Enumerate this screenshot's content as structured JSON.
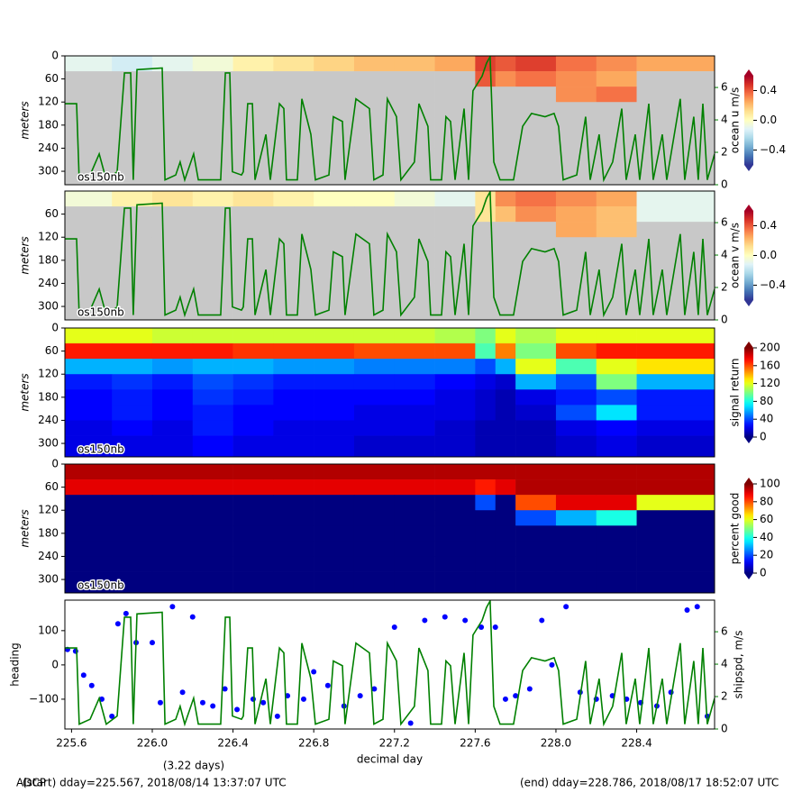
{
  "chart_data": [
    {
      "type": "heatmap",
      "ylabel": "meters",
      "label": "os150nb",
      "ylim": [
        335,
        0
      ],
      "yticks": [
        0,
        60,
        120,
        180,
        240,
        300
      ],
      "x_edges": [
        225.567,
        225.8,
        226.0,
        226.2,
        226.4,
        226.6,
        226.8,
        227.0,
        227.2,
        227.4,
        227.6,
        227.7,
        227.8,
        228.0,
        228.2,
        228.4,
        228.786
      ],
      "depth_edges": [
        0,
        40,
        80,
        120,
        160,
        200,
        240,
        280,
        335
      ],
      "z": [
        [
          -0.1,
          -0.15,
          -0.1,
          -0.05,
          0.05,
          0.1,
          0.15,
          0.2,
          0.2,
          0.25,
          0.45,
          0.4,
          0.45,
          0.35,
          0.3,
          0.25
        ],
        [
          null,
          null,
          null,
          null,
          null,
          null,
          null,
          null,
          null,
          null,
          0.4,
          0.3,
          0.35,
          0.3,
          0.25,
          null
        ],
        [
          null,
          null,
          null,
          null,
          null,
          null,
          null,
          null,
          null,
          null,
          null,
          null,
          null,
          0.3,
          0.35,
          null
        ],
        [
          null,
          null,
          null,
          null,
          null,
          null,
          null,
          null,
          null,
          null,
          null,
          null,
          null,
          null,
          null,
          null
        ],
        [
          null,
          null,
          null,
          null,
          null,
          null,
          null,
          null,
          null,
          null,
          null,
          null,
          null,
          null,
          null,
          null
        ],
        [
          null,
          null,
          null,
          null,
          null,
          null,
          null,
          null,
          null,
          null,
          null,
          null,
          null,
          null,
          null,
          null
        ],
        [
          null,
          null,
          null,
          null,
          null,
          null,
          null,
          null,
          null,
          null,
          null,
          null,
          null,
          null,
          null,
          null
        ],
        [
          null,
          null,
          null,
          null,
          null,
          null,
          null,
          null,
          null,
          null,
          null,
          null,
          null,
          null,
          null,
          null
        ]
      ],
      "colormap": "RdYlBu_r",
      "missing_color": "#c8c8c8",
      "clim": [
        -0.6,
        0.6
      ],
      "cticks": [
        {
          "value": -0.4,
          "label": "−0.4"
        },
        {
          "value": 0,
          "label": "0.0"
        },
        0.4
      ],
      "clabel": "ocean u m/s",
      "y2lim": [
        0,
        7.95
      ],
      "y2ticks": [
        0,
        2,
        4,
        6
      ],
      "y2_color": "green"
    },
    {
      "type": "heatmap",
      "ylabel": "meters",
      "label": "os150nb",
      "ylim": [
        335,
        0
      ],
      "yticks": [
        60,
        120,
        180,
        240,
        300
      ],
      "x_edges": [
        225.567,
        225.8,
        226.0,
        226.2,
        226.4,
        226.6,
        226.8,
        227.0,
        227.2,
        227.4,
        227.6,
        227.7,
        227.8,
        228.0,
        228.2,
        228.4,
        228.786
      ],
      "depth_edges": [
        0,
        40,
        80,
        120,
        160,
        200,
        240,
        280,
        335
      ],
      "z": [
        [
          -0.05,
          0.05,
          0.1,
          0.05,
          0.1,
          0.05,
          0,
          0,
          -0.05,
          -0.1,
          0.1,
          0.3,
          0.35,
          0.3,
          0.25,
          -0.1
        ],
        [
          null,
          null,
          null,
          null,
          null,
          null,
          null,
          null,
          null,
          null,
          0.1,
          0.2,
          0.3,
          0.25,
          0.2,
          -0.1
        ],
        [
          null,
          null,
          null,
          null,
          null,
          null,
          null,
          null,
          null,
          null,
          null,
          null,
          null,
          0.25,
          0.2,
          null
        ],
        [
          null,
          null,
          null,
          null,
          null,
          null,
          null,
          null,
          null,
          null,
          null,
          null,
          null,
          null,
          null,
          null
        ],
        [
          null,
          null,
          null,
          null,
          null,
          null,
          null,
          null,
          null,
          null,
          null,
          null,
          null,
          null,
          null,
          null
        ],
        [
          null,
          null,
          null,
          null,
          null,
          null,
          null,
          null,
          null,
          null,
          null,
          null,
          null,
          null,
          null,
          null
        ],
        [
          null,
          null,
          null,
          null,
          null,
          null,
          null,
          null,
          null,
          null,
          null,
          null,
          null,
          null,
          null,
          null
        ],
        [
          null,
          null,
          null,
          null,
          null,
          null,
          null,
          null,
          null,
          null,
          null,
          null,
          null,
          null,
          null,
          null
        ]
      ],
      "colormap": "RdYlBu_r",
      "missing_color": "#c8c8c8",
      "clim": [
        -0.6,
        0.6
      ],
      "cticks": [
        {
          "value": -0.4,
          "label": "−0.4"
        },
        {
          "value": 0,
          "label": "0.0"
        },
        0.4
      ],
      "clabel": "ocean v m/s",
      "y2lim": [
        0,
        7.95
      ],
      "y2ticks": [
        0,
        2,
        4,
        6
      ],
      "y2_color": "green"
    },
    {
      "type": "heatmap",
      "ylabel": "meters",
      "label": "os150nb",
      "ylim": [
        335,
        0
      ],
      "yticks": [
        0,
        60,
        120,
        180,
        240,
        300
      ],
      "x_edges": [
        225.567,
        225.8,
        226.0,
        226.2,
        226.4,
        226.6,
        226.8,
        227.0,
        227.2,
        227.4,
        227.6,
        227.7,
        227.8,
        228.0,
        228.2,
        228.4,
        228.786
      ],
      "depth_edges": [
        0,
        40,
        80,
        120,
        160,
        200,
        240,
        280,
        335
      ],
      "z": [
        [
          120,
          120,
          115,
          115,
          115,
          115,
          115,
          115,
          115,
          110,
          100,
          120,
          110,
          120,
          120,
          120
        ],
        [
          170,
          170,
          170,
          170,
          165,
          165,
          165,
          160,
          160,
          160,
          90,
          150,
          100,
          160,
          170,
          170
        ],
        [
          60,
          60,
          55,
          60,
          60,
          55,
          55,
          50,
          50,
          50,
          40,
          60,
          120,
          90,
          120,
          130
        ],
        [
          30,
          35,
          30,
          40,
          35,
          30,
          30,
          30,
          30,
          25,
          20,
          15,
          60,
          40,
          100,
          60
        ],
        [
          25,
          30,
          25,
          35,
          30,
          25,
          25,
          25,
          25,
          20,
          15,
          10,
          20,
          30,
          40,
          30
        ],
        [
          25,
          30,
          25,
          30,
          25,
          25,
          25,
          20,
          20,
          20,
          15,
          10,
          15,
          40,
          70,
          30
        ],
        [
          20,
          25,
          20,
          30,
          25,
          20,
          20,
          20,
          20,
          15,
          10,
          10,
          10,
          20,
          25,
          20
        ],
        [
          20,
          20,
          20,
          25,
          20,
          20,
          20,
          15,
          15,
          15,
          10,
          10,
          10,
          15,
          20,
          15
        ]
      ],
      "colormap": "jet",
      "clim": [
        0,
        200
      ],
      "cticks": [
        0,
        40,
        80,
        120,
        160,
        200
      ],
      "clabel": "signal return"
    },
    {
      "type": "heatmap",
      "ylabel": "meters",
      "label": "os150nb",
      "ylim": [
        335,
        0
      ],
      "yticks": [
        0,
        60,
        120,
        180,
        240,
        300
      ],
      "x_edges": [
        225.567,
        225.8,
        226.0,
        226.2,
        226.4,
        226.6,
        226.8,
        227.0,
        227.2,
        227.4,
        227.6,
        227.7,
        227.8,
        228.0,
        228.2,
        228.4,
        228.786
      ],
      "depth_edges": [
        0,
        40,
        80,
        120,
        160,
        200,
        240,
        280,
        335
      ],
      "z": [
        [
          95,
          95,
          95,
          95,
          95,
          95,
          95,
          95,
          95,
          95,
          95,
          95,
          95,
          95,
          95,
          95
        ],
        [
          90,
          90,
          90,
          90,
          90,
          90,
          90,
          90,
          90,
          90,
          85,
          90,
          95,
          95,
          95,
          95
        ],
        [
          0,
          0,
          0,
          0,
          0,
          0,
          0,
          0,
          0,
          0,
          20,
          0,
          80,
          90,
          90,
          60
        ],
        [
          0,
          0,
          0,
          0,
          0,
          0,
          0,
          0,
          0,
          0,
          0,
          0,
          20,
          30,
          40,
          0
        ],
        [
          0,
          0,
          0,
          0,
          0,
          0,
          0,
          0,
          0,
          0,
          0,
          0,
          0,
          0,
          0,
          0
        ],
        [
          0,
          0,
          0,
          0,
          0,
          0,
          0,
          0,
          0,
          0,
          0,
          0,
          0,
          0,
          0,
          0
        ],
        [
          0,
          0,
          0,
          0,
          0,
          0,
          0,
          0,
          0,
          0,
          0,
          0,
          0,
          0,
          0,
          0
        ],
        [
          0,
          0,
          0,
          0,
          0,
          0,
          0,
          0,
          0,
          0,
          0,
          0,
          0,
          0,
          0,
          0
        ]
      ],
      "colormap": "jet",
      "clim": [
        0,
        100
      ],
      "cticks": [
        0,
        20,
        40,
        60,
        80,
        100
      ],
      "clabel": "percent good"
    },
    {
      "type": "scatter_line",
      "ylabel": "heading",
      "y2label": "shipspd, m/s",
      "xlabel": "decimal day",
      "xlim": [
        225.567,
        228.786
      ],
      "xticks": [
        225.6,
        {
          "value": 226.0,
          "label": "226.0"
        },
        226.4,
        226.8,
        227.2,
        227.6,
        {
          "value": 228.0,
          "label": "228.0"
        },
        228.4
      ],
      "ylim": [
        -187,
        189
      ],
      "yticks": [
        {
          "value": -100,
          "label": "−100"
        },
        0,
        100
      ],
      "y_color": "blue",
      "y2lim": [
        0,
        7.95
      ],
      "y2ticks": [
        0,
        2,
        4,
        6
      ],
      "y2_color": "green",
      "series": [
        {
          "color": "blue",
          "axis": "y",
          "x": [
            225.58,
            225.62,
            225.66,
            225.7,
            225.75,
            225.8,
            225.83,
            225.87,
            225.92,
            226.0,
            226.04,
            226.1,
            226.15,
            226.2,
            226.25,
            226.3,
            226.36,
            226.42,
            226.5,
            226.55,
            226.62,
            226.67,
            226.75,
            226.8,
            226.87,
            226.95,
            227.03,
            227.1,
            227.2,
            227.28,
            227.35,
            227.45,
            227.55,
            227.63,
            227.7,
            227.75,
            227.8,
            227.87,
            227.93,
            227.98,
            228.05,
            228.12,
            228.2,
            228.28,
            228.35,
            228.42,
            228.5,
            228.57,
            228.65,
            228.7,
            228.75
          ],
          "values": [
            45,
            40,
            -30,
            -60,
            -100,
            -150,
            120,
            150,
            65,
            65,
            -110,
            170,
            -80,
            140,
            -110,
            -120,
            -70,
            -130,
            -100,
            -110,
            -150,
            -90,
            -100,
            -20,
            -60,
            -120,
            -90,
            -70,
            110,
            -170,
            130,
            140,
            130,
            110,
            110,
            -100,
            -90,
            -70,
            130,
            0,
            170,
            -80,
            -100,
            -90,
            -100,
            -110,
            -120,
            -80,
            160,
            170,
            -150
          ]
        },
        {
          "color": "green",
          "axis": "y2",
          "x": [
            225.567,
            225.625,
            225.638,
            225.692,
            225.737,
            225.772,
            225.826,
            225.862,
            225.893,
            225.906,
            225.924,
            226.049,
            226.063,
            226.116,
            226.138,
            226.161,
            226.205,
            226.228,
            226.339,
            226.362,
            226.384,
            226.397,
            226.442,
            226.451,
            226.473,
            226.496,
            226.509,
            226.563,
            226.585,
            226.63,
            226.652,
            226.665,
            226.719,
            226.741,
            226.786,
            226.808,
            226.875,
            226.897,
            226.942,
            226.955,
            227.009,
            227.076,
            227.098,
            227.143,
            227.165,
            227.21,
            227.232,
            227.299,
            227.321,
            227.366,
            227.379,
            227.433,
            227.455,
            227.478,
            227.5,
            227.545,
            227.567,
            227.589,
            227.634,
            227.656,
            227.674,
            227.692,
            227.723,
            227.79,
            227.835,
            227.879,
            227.946,
            227.991,
            228.013,
            228.036,
            228.103,
            228.147,
            228.17,
            228.214,
            228.237,
            228.281,
            228.326,
            228.348,
            228.393,
            228.415,
            228.46,
            228.482,
            228.527,
            228.549,
            228.616,
            228.638,
            228.683,
            228.705,
            228.728,
            228.75,
            228.786
          ],
          "values": [
            5.0,
            5.0,
            0.3,
            0.6,
            1.9,
            0.3,
            0.8,
            6.9,
            6.9,
            0.3,
            7.1,
            7.2,
            0.3,
            0.6,
            1.4,
            0.3,
            1.9,
            0.3,
            0.3,
            6.9,
            6.9,
            0.8,
            0.6,
            0.8,
            5.0,
            5.0,
            0.3,
            3.1,
            0.3,
            5.0,
            4.7,
            0.3,
            0.3,
            5.3,
            3.1,
            0.3,
            0.6,
            4.2,
            3.9,
            0.3,
            5.3,
            4.7,
            0.3,
            0.6,
            5.3,
            4.2,
            0.3,
            1.4,
            5.0,
            3.6,
            0.3,
            0.3,
            4.2,
            3.9,
            0.3,
            4.7,
            0.3,
            5.8,
            6.7,
            7.5,
            7.9,
            1.4,
            0.3,
            0.3,
            3.6,
            4.4,
            4.2,
            4.4,
            3.6,
            0.3,
            0.6,
            4.2,
            0.3,
            3.1,
            0.3,
            1.4,
            4.7,
            0.3,
            3.1,
            0.3,
            5.0,
            0.3,
            3.1,
            0.3,
            5.3,
            0.3,
            4.2,
            0.3,
            5.0,
            0.3,
            1.9
          ]
        }
      ]
    }
  ],
  "annotations": {
    "duration": "(3.22 days)",
    "prefix": "ADCP",
    "start": "(start) dday=225.567,  2018/08/14 13:37:07 UTC",
    "end": "(end) dday=228.786,  2018/08/17 18:52:07 UTC"
  }
}
